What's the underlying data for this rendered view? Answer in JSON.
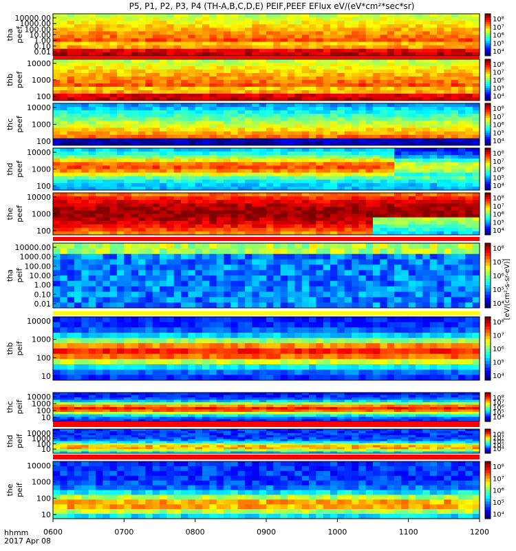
{
  "title": "P5, P1, P2, P3, P4 (TH-A,B,C,D,E) PEIF,PEEF EFlux eV/(eV*cm²*sec*sr)",
  "colorbar_label": "[eV/(cm²-s-sr-eV)]",
  "colorbar_ticks": [
    "10⁸",
    "10⁷",
    "10⁶",
    "10⁵",
    "10⁴"
  ],
  "footer": {
    "time_label": "hhmm",
    "date_label": "2017 Apr 08"
  },
  "x_ticks": [
    "0600",
    "0700",
    "0800",
    "0900",
    "1000",
    "1100",
    "1200"
  ],
  "chart_data": {
    "type": "heatmap",
    "x_range": [
      "06:00",
      "12:00"
    ],
    "panels": [
      {
        "label": [
          "tha",
          "peef"
        ],
        "y_ticks": [
          "10000.00",
          "1000.00",
          "100.00",
          "10.00",
          "1.00",
          "0.10",
          "0.01"
        ],
        "y_range": [
          0.01,
          30000
        ],
        "scale": "log",
        "species": "electron",
        "band": "high"
      },
      {
        "label": [
          "thb",
          "peef"
        ],
        "y_ticks": [
          "10000",
          "1000",
          "100"
        ],
        "y_range": [
          10,
          30000
        ],
        "scale": "log",
        "species": "electron",
        "band": "high"
      },
      {
        "label": [
          "thc",
          "peef"
        ],
        "y_ticks": [
          "10000",
          "1000",
          "100"
        ],
        "y_range": [
          10,
          30000
        ],
        "scale": "log",
        "species": "electron",
        "band": "high-dark"
      },
      {
        "label": [
          "thd",
          "peef"
        ],
        "y_ticks": [
          "10000",
          "1000",
          "100"
        ],
        "y_range": [
          10,
          30000
        ],
        "scale": "log",
        "species": "electron",
        "band": "mid"
      },
      {
        "label": [
          "the",
          "peef"
        ],
        "y_ticks": [
          "10000",
          "1000",
          "100"
        ],
        "y_range": [
          10,
          30000
        ],
        "scale": "log",
        "species": "electron",
        "band": "very-high"
      },
      {
        "label": [
          "tha",
          "peif"
        ],
        "y_ticks": [
          "10000.00",
          "1000.00",
          "100.00",
          "10.00",
          "1.00",
          "0.10",
          "0.01"
        ],
        "y_range": [
          0.01,
          30000
        ],
        "scale": "log",
        "species": "ion",
        "band": "low"
      },
      {
        "label": [
          "thb",
          "peif"
        ],
        "y_ticks": [
          "10000",
          "1000",
          "100",
          "10"
        ],
        "y_range": [
          5,
          30000
        ],
        "scale": "log",
        "species": "ion",
        "band": "ion-mid"
      },
      {
        "label": [
          "thc",
          "peif"
        ],
        "y_ticks": [
          "10000",
          "1000",
          "100",
          "10"
        ],
        "y_range": [
          5,
          30000
        ],
        "scale": "log",
        "species": "ion",
        "band": "ion-mid"
      },
      {
        "label": [
          "thd",
          "peif"
        ],
        "y_ticks": [
          "10000",
          "1000",
          "100",
          "10"
        ],
        "y_range": [
          5,
          30000
        ],
        "scale": "log",
        "species": "ion",
        "band": "ion-low"
      },
      {
        "label": [
          "the",
          "peif"
        ],
        "y_ticks": [
          "10000",
          "1000",
          "100",
          "10"
        ],
        "y_range": [
          5,
          30000
        ],
        "scale": "log",
        "species": "ion",
        "band": "ion-low"
      }
    ]
  }
}
